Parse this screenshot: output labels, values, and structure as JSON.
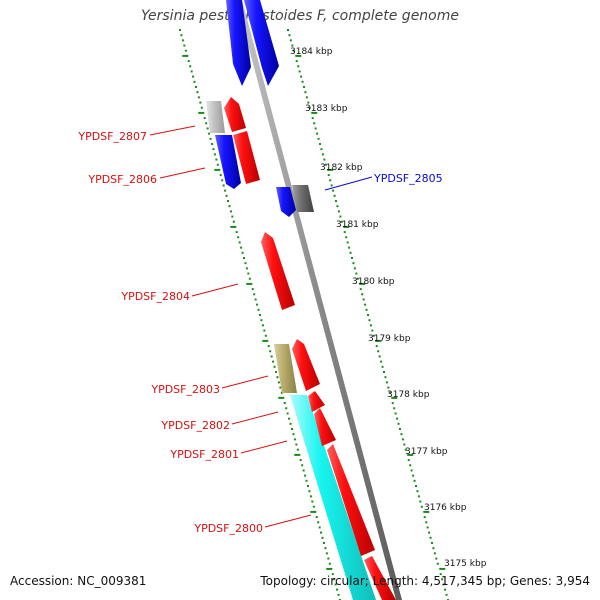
{
  "title": "Yersinia pestis Pestoides F, complete genome",
  "footer": {
    "accession": "Accession: NC_009381",
    "summary": "Topology: circular; Length: 4,517,345 bp; Genes: 3,954"
  },
  "scale": {
    "unit": "kbp",
    "ticks": [
      "3184 kbp",
      "3183 kbp",
      "3182 kbp",
      "3181 kbp",
      "3180 kbp",
      "3179 kbp",
      "3178 kbp",
      "3177 kbp",
      "3176 kbp",
      "3175 kbp"
    ]
  },
  "genes": [
    {
      "label": "YPDSF_2807",
      "color": "#d81010"
    },
    {
      "label": "YPDSF_2806",
      "color": "#d81010"
    },
    {
      "label": "YPDSF_2805",
      "color": "#0a0ad0"
    },
    {
      "label": "YPDSF_2804",
      "color": "#d81010"
    },
    {
      "label": "YPDSF_2803",
      "color": "#d81010"
    },
    {
      "label": "YPDSF_2802",
      "color": "#d81010"
    },
    {
      "label": "YPDSF_2801",
      "color": "#d81010"
    },
    {
      "label": "YPDSF_2800",
      "color": "#d81010"
    }
  ],
  "colors": {
    "forward_gene": "#ff1010",
    "reverse_gene": "#1010ff",
    "cyan_gene": "#19f5f0",
    "olive_gene": "#b8ad6b",
    "gray_gene": "#b0b0b0",
    "dark_gene": "#707070",
    "backbone": "#8a8a8a",
    "tick_green": "#1a8a1a"
  }
}
